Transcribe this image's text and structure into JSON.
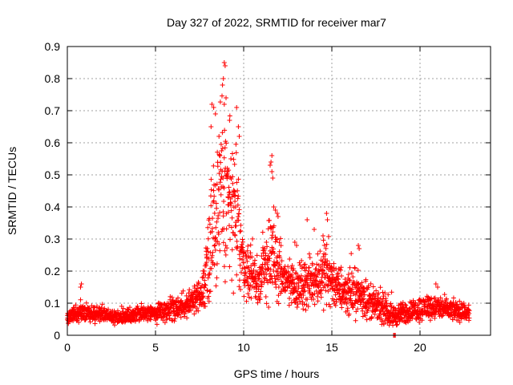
{
  "chart_data": {
    "type": "scatter",
    "title": "Day 327 of 2022, SRMTID for receiver mar7",
    "xlabel": "GPS time / hours",
    "ylabel": "SRMTID / TECUs",
    "xlim": [
      0,
      24
    ],
    "ylim": [
      0,
      0.9
    ],
    "xticks": [
      0,
      5,
      10,
      15,
      20
    ],
    "yticks": [
      0,
      0.1,
      0.2,
      0.3,
      0.4,
      0.5,
      0.6,
      0.7,
      0.8,
      0.9
    ],
    "ytick_labels": [
      "0",
      "0.1",
      "0.2",
      "0.3",
      "0.4",
      "0.5",
      "0.6",
      "0.7",
      "0.8",
      "0.9"
    ],
    "grid": true,
    "marker": "+",
    "color": "#ff0000",
    "x_data_range": [
      0,
      22.8
    ],
    "profile": [
      {
        "t": 0.0,
        "base": 0.06,
        "spread": 0.02
      },
      {
        "t": 1.0,
        "base": 0.07,
        "spread": 0.025
      },
      {
        "t": 2.0,
        "base": 0.065,
        "spread": 0.02
      },
      {
        "t": 3.0,
        "base": 0.055,
        "spread": 0.02
      },
      {
        "t": 4.0,
        "base": 0.065,
        "spread": 0.02
      },
      {
        "t": 5.0,
        "base": 0.07,
        "spread": 0.025
      },
      {
        "t": 6.0,
        "base": 0.08,
        "spread": 0.03
      },
      {
        "t": 7.0,
        "base": 0.1,
        "spread": 0.035
      },
      {
        "t": 7.7,
        "base": 0.13,
        "spread": 0.05
      },
      {
        "t": 8.2,
        "base": 0.35,
        "spread": 0.2
      },
      {
        "t": 8.8,
        "base": 0.45,
        "spread": 0.25
      },
      {
        "t": 9.5,
        "base": 0.38,
        "spread": 0.22
      },
      {
        "t": 10.0,
        "base": 0.22,
        "spread": 0.08
      },
      {
        "t": 10.8,
        "base": 0.16,
        "spread": 0.06
      },
      {
        "t": 11.5,
        "base": 0.25,
        "spread": 0.13
      },
      {
        "t": 12.2,
        "base": 0.18,
        "spread": 0.07
      },
      {
        "t": 13.0,
        "base": 0.15,
        "spread": 0.06
      },
      {
        "t": 14.0,
        "base": 0.17,
        "spread": 0.07
      },
      {
        "t": 14.6,
        "base": 0.2,
        "spread": 0.09
      },
      {
        "t": 15.5,
        "base": 0.14,
        "spread": 0.06
      },
      {
        "t": 16.5,
        "base": 0.13,
        "spread": 0.06
      },
      {
        "t": 17.5,
        "base": 0.09,
        "spread": 0.04
      },
      {
        "t": 18.5,
        "base": 0.06,
        "spread": 0.03
      },
      {
        "t": 19.5,
        "base": 0.075,
        "spread": 0.03
      },
      {
        "t": 20.5,
        "base": 0.09,
        "spread": 0.035
      },
      {
        "t": 21.5,
        "base": 0.08,
        "spread": 0.03
      },
      {
        "t": 22.8,
        "base": 0.07,
        "spread": 0.025
      }
    ],
    "highlights": [
      {
        "x": 8.9,
        "y": 0.85
      },
      {
        "x": 8.95,
        "y": 0.84
      },
      {
        "x": 8.85,
        "y": 0.8
      },
      {
        "x": 8.8,
        "y": 0.78
      },
      {
        "x": 9.0,
        "y": 0.74
      },
      {
        "x": 8.9,
        "y": 0.72
      },
      {
        "x": 8.2,
        "y": 0.72
      },
      {
        "x": 8.3,
        "y": 0.71
      },
      {
        "x": 9.6,
        "y": 0.71
      },
      {
        "x": 8.4,
        "y": 0.69
      },
      {
        "x": 9.7,
        "y": 0.65
      },
      {
        "x": 9.2,
        "y": 0.67
      },
      {
        "x": 8.15,
        "y": 0.65
      },
      {
        "x": 8.6,
        "y": 0.62
      },
      {
        "x": 9.75,
        "y": 0.62
      },
      {
        "x": 11.6,
        "y": 0.56
      },
      {
        "x": 11.55,
        "y": 0.54
      },
      {
        "x": 11.5,
        "y": 0.53
      },
      {
        "x": 11.6,
        "y": 0.51
      },
      {
        "x": 11.65,
        "y": 0.49
      },
      {
        "x": 11.7,
        "y": 0.4
      },
      {
        "x": 11.8,
        "y": 0.39
      },
      {
        "x": 11.9,
        "y": 0.38
      },
      {
        "x": 11.95,
        "y": 0.37
      },
      {
        "x": 14.7,
        "y": 0.38
      },
      {
        "x": 14.75,
        "y": 0.36
      },
      {
        "x": 13.6,
        "y": 0.36
      },
      {
        "x": 14.0,
        "y": 0.33
      },
      {
        "x": 14.5,
        "y": 0.31
      },
      {
        "x": 16.5,
        "y": 0.28
      },
      {
        "x": 16.55,
        "y": 0.27
      },
      {
        "x": 12.9,
        "y": 0.29
      },
      {
        "x": 13.0,
        "y": 0.28
      },
      {
        "x": 0.8,
        "y": 0.16
      },
      {
        "x": 0.75,
        "y": 0.15
      },
      {
        "x": 20.9,
        "y": 0.16
      },
      {
        "x": 21.0,
        "y": 0.15
      },
      {
        "x": 18.5,
        "y": 0.0
      },
      {
        "x": 18.55,
        "y": 0.0
      },
      {
        "x": 18.6,
        "y": 0.0
      }
    ]
  }
}
